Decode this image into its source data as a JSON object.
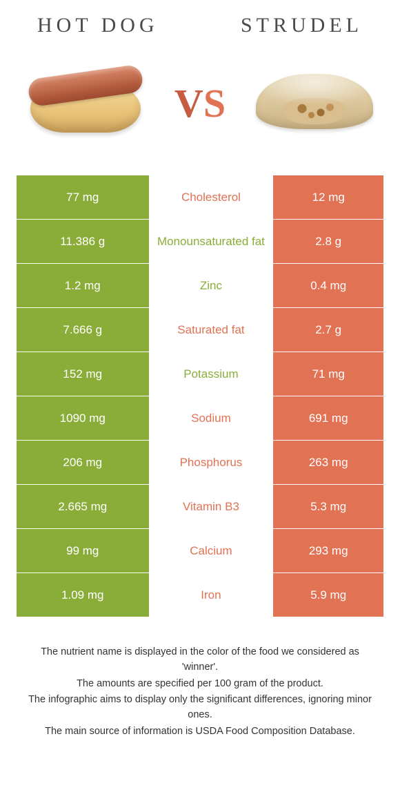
{
  "header": {
    "left_title": "Hot dog",
    "right_title": "Strudel"
  },
  "vs": {
    "v": "V",
    "s": "S"
  },
  "colors": {
    "green": "#8aad3a",
    "orange": "#e27254",
    "green_text": "#8aad3a",
    "orange_text": "#e27254"
  },
  "rows": [
    {
      "left": "77 mg",
      "label": "Cholesterol",
      "right": "12 mg",
      "winner": "right"
    },
    {
      "left": "11.386 g",
      "label": "Monounsaturated fat",
      "right": "2.8 g",
      "winner": "left"
    },
    {
      "left": "1.2 mg",
      "label": "Zinc",
      "right": "0.4 mg",
      "winner": "left"
    },
    {
      "left": "7.666 g",
      "label": "Saturated fat",
      "right": "2.7 g",
      "winner": "right"
    },
    {
      "left": "152 mg",
      "label": "Potassium",
      "right": "71 mg",
      "winner": "left"
    },
    {
      "left": "1090 mg",
      "label": "Sodium",
      "right": "691 mg",
      "winner": "right"
    },
    {
      "left": "206 mg",
      "label": "Phosphorus",
      "right": "263 mg",
      "winner": "right"
    },
    {
      "left": "2.665 mg",
      "label": "Vitamin B3",
      "right": "5.3 mg",
      "winner": "right"
    },
    {
      "left": "99 mg",
      "label": "Calcium",
      "right": "293 mg",
      "winner": "right"
    },
    {
      "left": "1.09 mg",
      "label": "Iron",
      "right": "5.9 mg",
      "winner": "right"
    }
  ],
  "footer": {
    "line1": "The nutrient name is displayed in the color of the food we considered as 'winner'.",
    "line2": "The amounts are specified per 100 gram of the product.",
    "line3": "The infographic aims to display only the significant differences, ignoring minor ones.",
    "line4": "The main source of information is USDA Food Composition Database."
  }
}
